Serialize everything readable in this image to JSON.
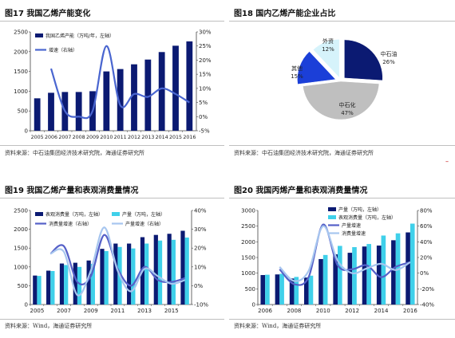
{
  "fig17": {
    "title": "图17 我国乙烯产能变化",
    "source": "资料来源：中石油集团经济技术研究院，海通证券研究所",
    "chart_data": {
      "type": "bar",
      "categories": [
        "2005",
        "2006",
        "2007",
        "2008",
        "2009",
        "2010",
        "2011",
        "2012",
        "2013",
        "2014",
        "2015",
        "2016"
      ],
      "series": [
        {
          "name": "我国乙烯产能（万吨/年，左轴）",
          "kind": "bar",
          "color": "#0b1a72",
          "axis": "left",
          "values": [
            820,
            960,
            980,
            980,
            1000,
            1500,
            1560,
            1680,
            1800,
            1990,
            2150,
            2260
          ]
        },
        {
          "name": "增速（右轴）",
          "kind": "line",
          "color": "#4a66d0",
          "axis": "right",
          "values": [
            null,
            17,
            2,
            0,
            2,
            25,
            4,
            8,
            7,
            10,
            8,
            5
          ]
        }
      ],
      "ylim_left": [
        0,
        2500
      ],
      "yticks_left": [
        0,
        500,
        1000,
        1500,
        2000,
        2500
      ],
      "ylim_right": [
        -5,
        30
      ],
      "yticks_right": [
        "-5%",
        "0%",
        "5%",
        "10%",
        "15%",
        "20%",
        "25%",
        "30%"
      ],
      "xtick_labels": [
        "2005",
        "2006",
        "2007",
        "2008",
        "2009",
        "2010",
        "2011",
        "2012",
        "2013",
        "2014",
        "2015",
        "2016"
      ]
    }
  },
  "fig18": {
    "title": "图18 国内乙烯产能企业占比",
    "source": "资料来源：中石油集团经济技术研究院，海通证券研究所",
    "chart_data": {
      "type": "pie",
      "slices": [
        {
          "label": "中石油",
          "value": 26,
          "value_label": "26%",
          "color": "#0b1a72"
        },
        {
          "label": "中石化",
          "value": 47,
          "value_label": "47%",
          "color": "#bfbfbf"
        },
        {
          "label": "其他",
          "value": 15,
          "value_label": "15%",
          "color": "#1b3fd8"
        },
        {
          "label": "外资",
          "value": 12,
          "value_label": "12%",
          "color": "#d6f3fb"
        }
      ]
    }
  },
  "fig19": {
    "title": "图19 我国乙烯产量和表观消费量情况",
    "source": "资料来源：Wind，海通证券研究所",
    "chart_data": {
      "type": "bar",
      "categories": [
        "2005",
        "2006",
        "2007",
        "2008",
        "2009",
        "2010",
        "2011",
        "2012",
        "2013",
        "2014",
        "2015",
        "2016"
      ],
      "series": [
        {
          "name": "表观消费量（万吨，左轴）",
          "kind": "bar",
          "color": "#0b1a72",
          "axis": "left",
          "values": [
            770,
            900,
            1090,
            1110,
            1170,
            1480,
            1620,
            1620,
            1790,
            1850,
            1880,
            1960
          ]
        },
        {
          "name": "产量（万吨，左轴）",
          "kind": "bar",
          "color": "#3fd0ea",
          "axis": "left",
          "values": [
            760,
            890,
            1050,
            1000,
            1080,
            1420,
            1530,
            1490,
            1620,
            1700,
            1720,
            1780
          ]
        },
        {
          "name": "消费量增速（右轴）",
          "kind": "line",
          "color": "#5560c8",
          "axis": "right",
          "values": [
            null,
            17,
            21,
            2,
            5,
            27,
            9,
            0,
            10,
            3,
            2,
            4
          ]
        },
        {
          "name": "产量增速（右轴）",
          "kind": "line",
          "color": "#a7c6ef",
          "axis": "right",
          "values": [
            null,
            17,
            18,
            -5,
            8,
            31,
            8,
            -3,
            9,
            5,
            1,
            3
          ]
        }
      ],
      "ylim_left": [
        0,
        2500
      ],
      "yticks_left": [
        0,
        500,
        1000,
        1500,
        2000,
        2500
      ],
      "ylim_right": [
        -10,
        40
      ],
      "yticks_right": [
        "-10%",
        "0%",
        "10%",
        "20%",
        "30%",
        "40%"
      ],
      "xtick_labels": [
        "2005",
        "2007",
        "2009",
        "2011",
        "2013",
        "2015"
      ]
    }
  },
  "fig20": {
    "title": "图20 我国丙烯产量和表观消费量情况",
    "source": "资料来源：Wind，海通证券研究所",
    "chart_data": {
      "type": "bar",
      "categories": [
        "2006",
        "2007",
        "2008",
        "2009",
        "2010",
        "2011",
        "2012",
        "2013",
        "2014",
        "2015",
        "2016"
      ],
      "series": [
        {
          "name": "产量（万吨，左轴）",
          "kind": "bar",
          "color": "#0b1a72",
          "axis": "left",
          "values": [
            940,
            960,
            830,
            860,
            1450,
            1600,
            1650,
            1850,
            1880,
            2050,
            2300
          ]
        },
        {
          "name": "表观消费量（万吨，左轴）",
          "kind": "bar",
          "color": "#3fd0ea",
          "axis": "left",
          "values": [
            950,
            980,
            880,
            920,
            1580,
            1870,
            1830,
            1930,
            2200,
            2270,
            2580
          ]
        },
        {
          "name": "产量增速",
          "kind": "line",
          "color": "#5560c8",
          "axis": "right",
          "values": [
            null,
            5,
            -14,
            -5,
            62,
            10,
            5,
            10,
            -5,
            8,
            14
          ]
        },
        {
          "name": "消费量增速",
          "kind": "line",
          "color": "#a7c6ef",
          "axis": "right",
          "values": [
            null,
            8,
            -10,
            3,
            60,
            16,
            0,
            6,
            12,
            4,
            14
          ]
        }
      ],
      "ylim_left": [
        0,
        3000
      ],
      "yticks_left": [
        0,
        500,
        1000,
        1500,
        2000,
        2500,
        3000
      ],
      "ylim_right": [
        -40,
        80
      ],
      "yticks_right": [
        "-40%",
        "-20%",
        "0%",
        "20%",
        "40%",
        "60%",
        "80%"
      ],
      "xtick_labels": [
        "2006",
        "2008",
        "2010",
        "2012",
        "2014",
        "2016"
      ]
    }
  }
}
